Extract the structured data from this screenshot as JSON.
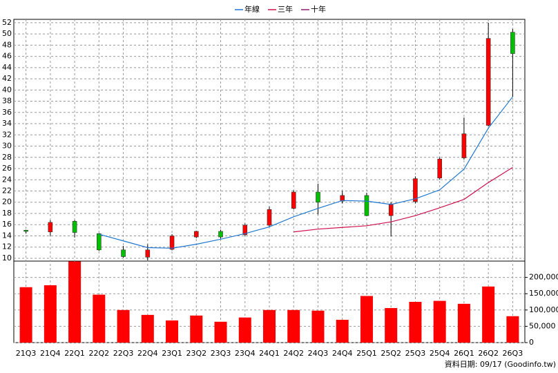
{
  "chart_data": [
    {
      "type": "candlestick",
      "categories": [
        "21Q3",
        "21Q4",
        "22Q1",
        "22Q2",
        "22Q3",
        "22Q4",
        "23Q1",
        "23Q2",
        "23Q3",
        "23Q4",
        "24Q1",
        "24Q2",
        "24Q3",
        "24Q4",
        "25Q1",
        "25Q2",
        "25Q3",
        "25Q4",
        "26Q1",
        "26Q2",
        "26Q3"
      ],
      "open": [
        15.0,
        14.7,
        16.6,
        14.4,
        11.5,
        10.2,
        11.6,
        13.8,
        14.8,
        14.2,
        15.9,
        18.9,
        21.8,
        20.2,
        21.2,
        17.6,
        20.1,
        24.3,
        27.9,
        33.7,
        50.3
      ],
      "high": [
        15.1,
        16.8,
        16.8,
        14.5,
        12.2,
        12.5,
        14.3,
        14.9,
        15.1,
        16.2,
        19.2,
        22.1,
        23.3,
        22.0,
        21.7,
        20.0,
        24.6,
        28.0,
        35.1,
        52.0,
        50.9
      ],
      "low": [
        14.4,
        14.0,
        13.7,
        11.3,
        10.1,
        9.6,
        11.4,
        13.6,
        13.5,
        14.0,
        15.6,
        18.7,
        17.8,
        19.8,
        17.5,
        13.9,
        19.8,
        24.0,
        27.6,
        33.5,
        38.8
      ],
      "close": [
        14.8,
        16.4,
        14.6,
        11.5,
        10.3,
        11.5,
        14.0,
        14.8,
        13.8,
        15.9,
        18.7,
        21.8,
        20.0,
        21.2,
        17.6,
        19.7,
        24.2,
        27.7,
        32.2,
        49.2,
        46.5
      ],
      "up_color": "#ff0000",
      "down_color": "#00c000",
      "series": [
        {
          "name": "年線",
          "color": "#1e78d2",
          "values": [
            null,
            null,
            null,
            14.3,
            13.1,
            11.9,
            11.8,
            12.5,
            13.4,
            14.4,
            15.6,
            17.4,
            18.9,
            20.3,
            20.2,
            19.6,
            20.6,
            22.2,
            25.9,
            33.2,
            38.8
          ]
        },
        {
          "name": "三年",
          "color": "#d0104c",
          "values": [
            null,
            null,
            null,
            null,
            null,
            null,
            null,
            null,
            null,
            null,
            null,
            14.7,
            15.2,
            15.5,
            15.8,
            16.5,
            17.6,
            19.0,
            20.5,
            23.5,
            26.2
          ]
        },
        {
          "name": "十年",
          "color": "#8b1a6b",
          "values": [
            null,
            null,
            null,
            null,
            null,
            null,
            null,
            null,
            null,
            null,
            null,
            null,
            null,
            null,
            null,
            null,
            null,
            null,
            null,
            null,
            null
          ]
        }
      ],
      "ylim": [
        9.5,
        52.6
      ],
      "yticks": [
        10,
        12,
        14,
        16,
        18,
        20,
        22,
        24,
        26,
        28,
        30,
        32,
        34,
        36,
        38,
        40,
        42,
        44,
        46,
        48,
        50,
        52
      ],
      "grid": true
    },
    {
      "type": "bar",
      "categories": [
        "21Q3",
        "21Q4",
        "22Q1",
        "22Q2",
        "22Q3",
        "22Q4",
        "23Q1",
        "23Q2",
        "23Q3",
        "23Q4",
        "24Q1",
        "24Q2",
        "24Q3",
        "24Q4",
        "25Q1",
        "25Q2",
        "25Q3",
        "25Q4",
        "26Q1",
        "26Q2",
        "26Q3"
      ],
      "values": [
        170000,
        176000,
        249000,
        147000,
        100000,
        85000,
        68000,
        83000,
        64000,
        77000,
        100000,
        100000,
        98000,
        70000,
        143000,
        106000,
        125000,
        128000,
        119000,
        172000,
        81000
      ],
      "color": "#ff0000",
      "ylim": [
        0,
        250000
      ],
      "yticks": [
        0,
        {
          "value": 50000,
          "label": "50,000"
        },
        {
          "value": 100000,
          "label": "100,000"
        },
        {
          "value": 150000,
          "label": "150,000"
        },
        {
          "value": 200000,
          "label": "200,000"
        }
      ],
      "grid": true,
      "footer": "資料日期: 09/17 (Goodinfo.tw)"
    }
  ]
}
